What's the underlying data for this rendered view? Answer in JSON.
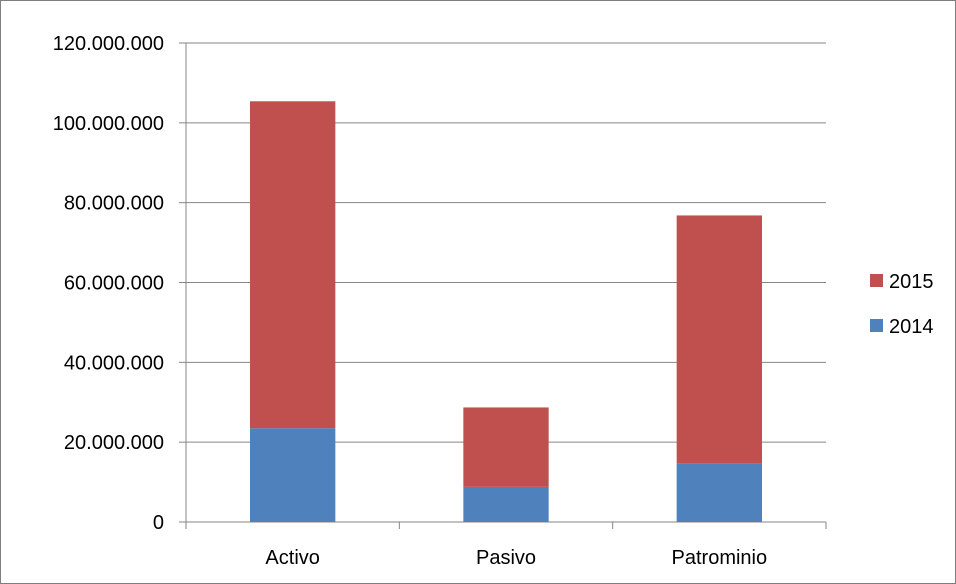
{
  "chart_data": {
    "type": "bar",
    "stacked": true,
    "categories": [
      "Activo",
      "Pasivo",
      "Patrominio"
    ],
    "series": [
      {
        "name": "2014",
        "color": "#4f81bd",
        "values": [
          23500000,
          8800000,
          14600000
        ]
      },
      {
        "name": "2015",
        "color": "#c0504d",
        "values": [
          81900000,
          19900000,
          62200000
        ]
      }
    ],
    "ylim": [
      0,
      120000000
    ],
    "yticks": [
      0,
      20000000,
      40000000,
      60000000,
      80000000,
      100000000,
      120000000
    ],
    "ytick_labels": [
      "0",
      "20.000.000",
      "40.000.000",
      "60.000.000",
      "80.000.000",
      "100.000.000",
      "120.000.000"
    ],
    "grid": true,
    "legend": {
      "position": "right",
      "entries": [
        {
          "label": "2015",
          "color": "#c0504d"
        },
        {
          "label": "2014",
          "color": "#4f81bd"
        }
      ]
    },
    "title": "",
    "xlabel": "",
    "ylabel": ""
  }
}
